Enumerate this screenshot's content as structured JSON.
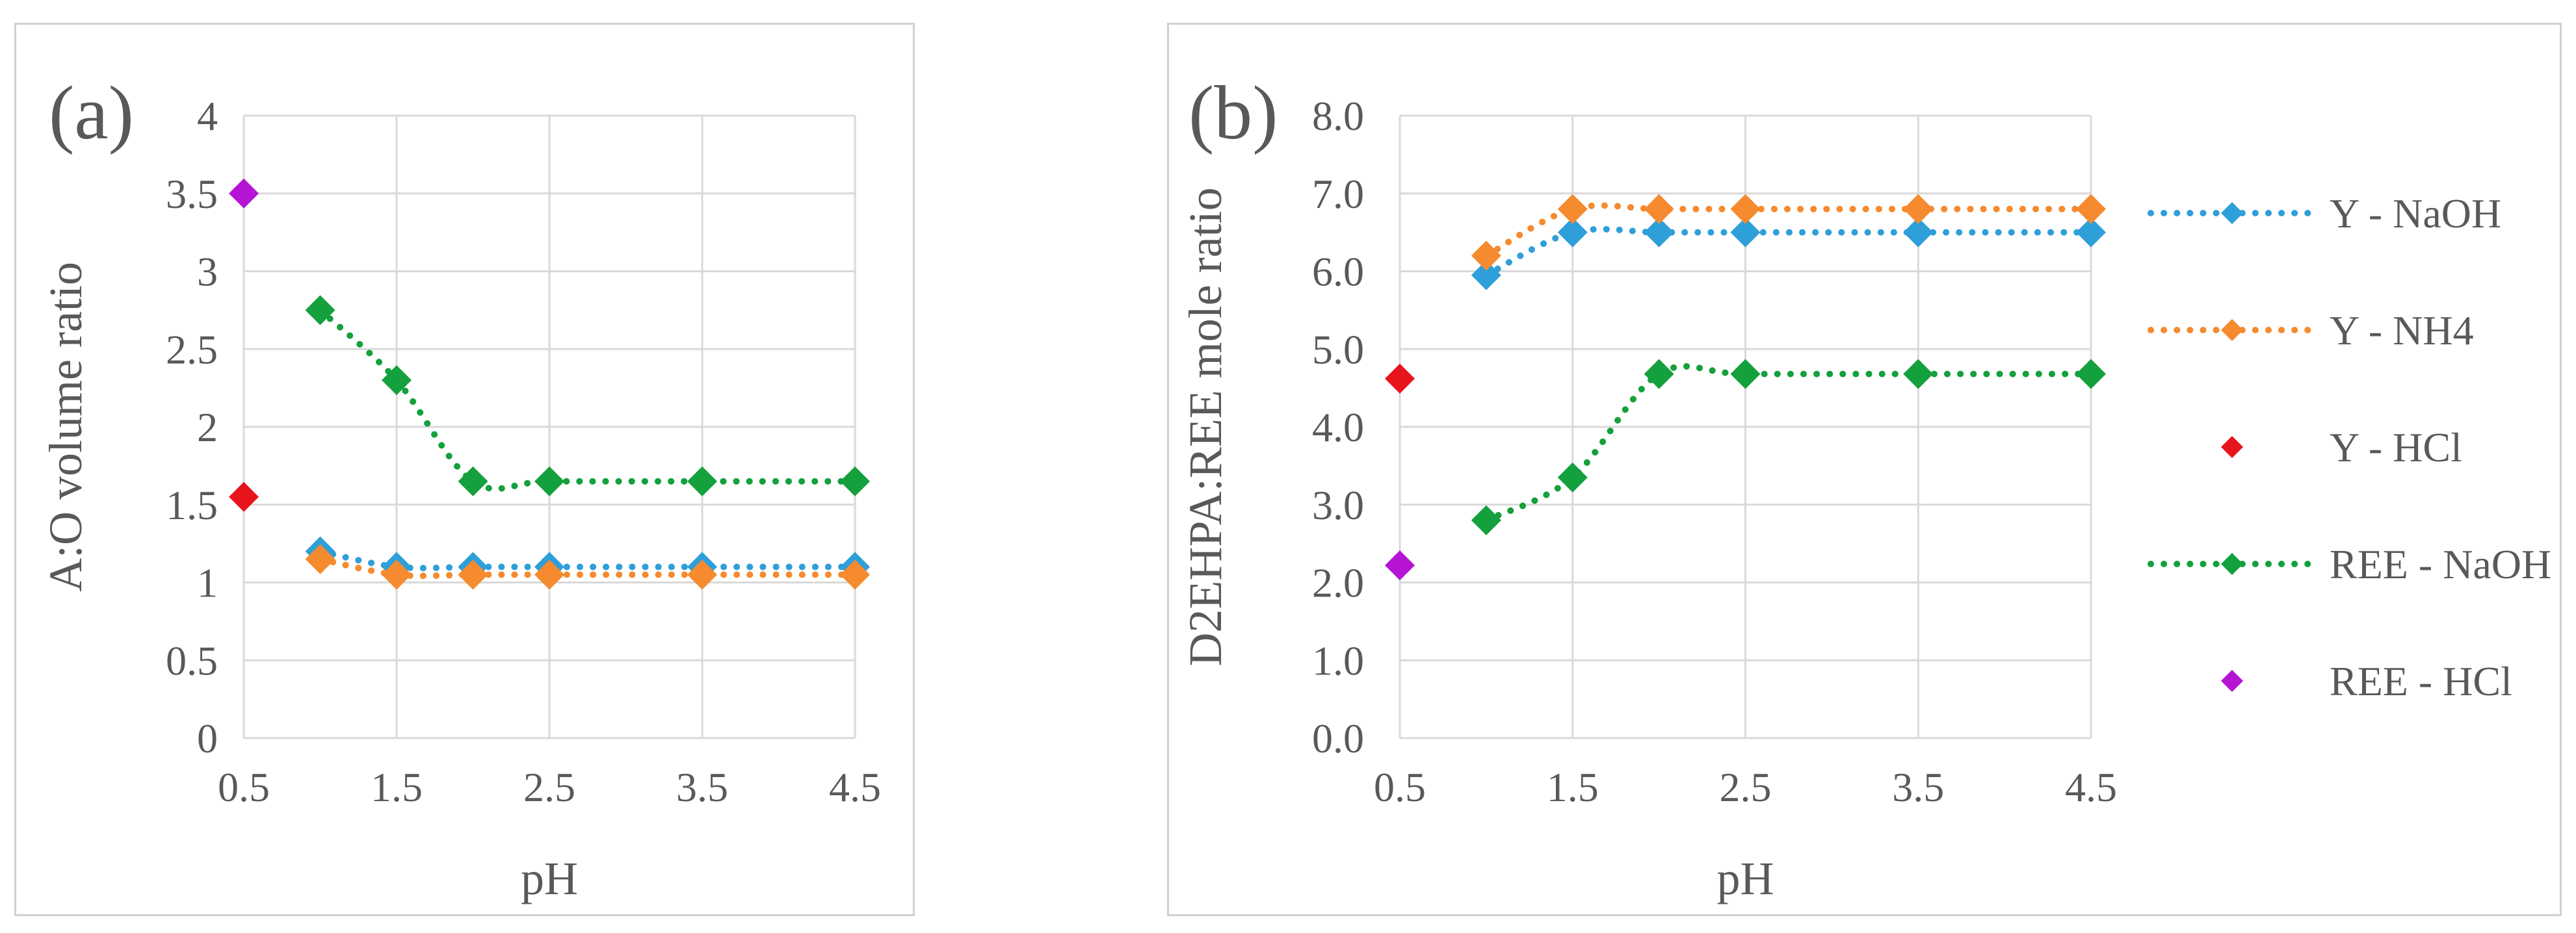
{
  "chart_data": [
    {
      "type": "scatter",
      "panel_label": "(a)",
      "xlabel": "pH",
      "ylabel": "A:O volume ratio",
      "x_ticks": [
        "0.5",
        "1.5",
        "2.5",
        "3.5",
        "4.5"
      ],
      "y_ticks": [
        "0",
        "0.5",
        "1",
        "1.5",
        "2",
        "2.5",
        "3",
        "3.5",
        "4"
      ],
      "xlim": [
        0.5,
        4.5
      ],
      "ylim": [
        0,
        4
      ],
      "grid": true,
      "legend": "none",
      "series": [
        {
          "key": "y-naoh",
          "color": "#2e9fd9",
          "line": true,
          "points": [
            [
              1.0,
              1.2
            ],
            [
              1.5,
              1.1
            ],
            [
              2.0,
              1.1
            ],
            [
              2.5,
              1.1
            ],
            [
              3.5,
              1.1
            ],
            [
              4.5,
              1.1
            ]
          ]
        },
        {
          "key": "y-nh4",
          "color": "#f58a2e",
          "line": true,
          "points": [
            [
              1.0,
              1.15
            ],
            [
              1.5,
              1.05
            ],
            [
              2.0,
              1.05
            ],
            [
              2.5,
              1.05
            ],
            [
              3.5,
              1.05
            ],
            [
              4.5,
              1.05
            ]
          ]
        },
        {
          "key": "y-hcl",
          "color": "#e8141c",
          "line": false,
          "points": [
            [
              0.5,
              1.55
            ]
          ]
        },
        {
          "key": "ree-naoh",
          "color": "#14a03c",
          "line": true,
          "points": [
            [
              1.0,
              2.75
            ],
            [
              1.5,
              2.3
            ],
            [
              2.0,
              1.65
            ],
            [
              2.5,
              1.65
            ],
            [
              3.5,
              1.65
            ],
            [
              4.5,
              1.65
            ]
          ]
        },
        {
          "key": "ree-hcl",
          "color": "#b514d4",
          "line": false,
          "points": [
            [
              0.5,
              3.5
            ]
          ]
        }
      ]
    },
    {
      "type": "scatter",
      "panel_label": "(b)",
      "xlabel": "pH",
      "ylabel": "D2EHPA:REE mole ratio",
      "x_ticks": [
        "0.5",
        "1.5",
        "2.5",
        "3.5",
        "4.5"
      ],
      "y_ticks": [
        "0.0",
        "1.0",
        "2.0",
        "3.0",
        "4.0",
        "5.0",
        "6.0",
        "7.0",
        "8.0"
      ],
      "xlim": [
        0.5,
        4.5
      ],
      "ylim": [
        0,
        8
      ],
      "grid": true,
      "legend": "right",
      "series": [
        {
          "key": "y-naoh",
          "name": "Y - NaOH",
          "color": "#2e9fd9",
          "line": true,
          "points": [
            [
              1.0,
              5.95
            ],
            [
              1.5,
              6.5
            ],
            [
              2.0,
              6.5
            ],
            [
              2.5,
              6.5
            ],
            [
              3.5,
              6.5
            ],
            [
              4.5,
              6.5
            ]
          ]
        },
        {
          "key": "y-nh4",
          "name": "Y - NH4",
          "color": "#f58a2e",
          "line": true,
          "points": [
            [
              1.0,
              6.2
            ],
            [
              1.5,
              6.8
            ],
            [
              2.0,
              6.8
            ],
            [
              2.5,
              6.8
            ],
            [
              3.5,
              6.8
            ],
            [
              4.5,
              6.8
            ]
          ]
        },
        {
          "key": "y-hcl",
          "name": "Y - HCl",
          "color": "#e8141c",
          "line": false,
          "points": [
            [
              0.5,
              4.62
            ]
          ]
        },
        {
          "key": "ree-naoh",
          "name": "REE - NaOH",
          "color": "#14a03c",
          "line": true,
          "points": [
            [
              1.0,
              2.8
            ],
            [
              1.5,
              3.35
            ],
            [
              2.0,
              4.68
            ],
            [
              2.5,
              4.68
            ],
            [
              3.5,
              4.68
            ],
            [
              4.5,
              4.68
            ]
          ]
        },
        {
          "key": "ree-hcl",
          "name": "REE - HCl",
          "color": "#b514d4",
          "line": false,
          "points": [
            [
              0.5,
              2.22
            ]
          ]
        }
      ]
    }
  ]
}
